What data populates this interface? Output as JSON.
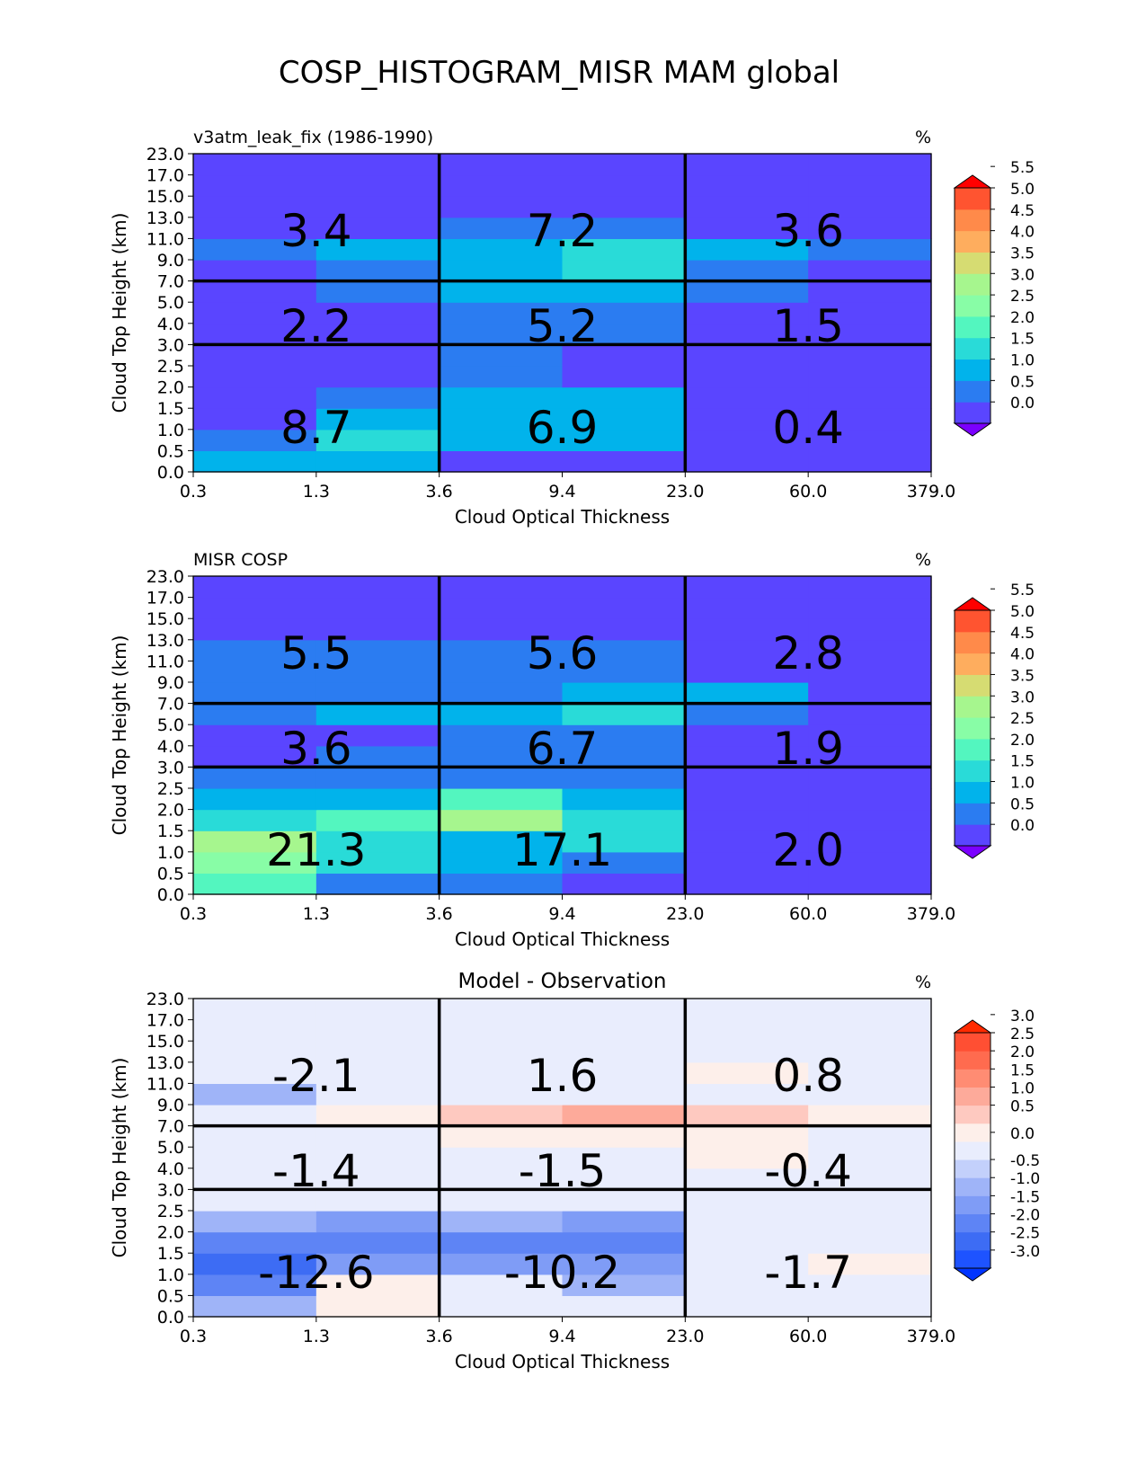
{
  "figure": {
    "title": "COSP_HISTOGRAM_MISR MAM global"
  },
  "chart_data": [
    {
      "type": "heatmap",
      "panel_title_left": "v3atm_leak_fix (1986-1990)",
      "panel_title_center": "",
      "units": "%",
      "xlabel": "Cloud Optical Thickness",
      "ylabel": "Cloud Top Height (km)",
      "x_ticks": [
        "0.3",
        "1.3",
        "3.6",
        "9.4",
        "23.0",
        "60.0",
        "379.0"
      ],
      "y_ticks": [
        "0.0",
        "0.5",
        "1.0",
        "1.5",
        "2.0",
        "2.5",
        "3.0",
        "4.0",
        "5.0",
        "7.0",
        "9.0",
        "11.0",
        "13.0",
        "15.0",
        "17.0",
        "23.0"
      ],
      "colorbar_ticks": [
        "0.0",
        "0.5",
        "1.0",
        "1.5",
        "2.0",
        "2.5",
        "3.0",
        "3.5",
        "4.0",
        "4.5",
        "5.0",
        "5.5"
      ],
      "colorbar_levels": [
        0,
        0.5,
        1.0,
        1.5,
        2.0,
        2.5,
        3.0,
        3.5,
        4.0,
        4.5,
        5.0,
        5.5
      ],
      "colorbar_colors": [
        "#7b00ff",
        "#5a45ff",
        "#2b7cf1",
        "#01b3eb",
        "#29dbd8",
        "#53f6bf",
        "#88fda6",
        "#a6f68e",
        "#d6dc72",
        "#fead5e",
        "#ff8a4a",
        "#ff5430",
        "#ff0000"
      ],
      "cells_row_order": "bottom-to-top (height 0.0-0.5 first), columns left-to-right (tau 0.3-1.3 first)",
      "cells": [
        [
          1.2,
          1.2,
          0.2,
          0.2,
          0.1,
          0.1
        ],
        [
          0.6,
          1.6,
          1.3,
          1.2,
          0.1,
          0.1
        ],
        [
          0.2,
          1.2,
          1.3,
          1.1,
          0.1,
          0.1
        ],
        [
          0.2,
          0.6,
          1.2,
          1.1,
          0.1,
          0.1
        ],
        [
          0.1,
          0.2,
          0.6,
          0.2,
          0.1,
          0.1
        ],
        [
          0.1,
          0.2,
          0.6,
          0.2,
          0.1,
          0.1
        ],
        [
          0.1,
          0.2,
          0.6,
          0.6,
          0.1,
          0.1
        ],
        [
          0.1,
          0.2,
          0.6,
          0.6,
          0.1,
          0.1
        ],
        [
          0.1,
          0.6,
          1.1,
          1.1,
          0.6,
          0.2
        ],
        [
          0.2,
          0.6,
          1.2,
          1.6,
          0.6,
          0.2
        ],
        [
          0.6,
          1.2,
          1.2,
          1.6,
          1.1,
          0.6
        ],
        [
          0.1,
          0.2,
          0.6,
          0.6,
          0.1,
          0.1
        ],
        [
          0.1,
          0.2,
          0.2,
          0.2,
          0.1,
          0.1
        ],
        [
          0.1,
          0.2,
          0.2,
          0.2,
          0.1,
          0.1
        ],
        [
          0.1,
          0.2,
          0.2,
          0.2,
          0.1,
          0.1
        ]
      ],
      "region_labels": [
        "8.7",
        "6.9",
        "0.4",
        "2.2",
        "5.2",
        "1.5",
        "3.4",
        "7.2",
        "3.6"
      ]
    },
    {
      "type": "heatmap",
      "panel_title_left": "MISR COSP",
      "panel_title_center": "",
      "units": "%",
      "xlabel": "Cloud Optical Thickness",
      "ylabel": "Cloud Top Height (km)",
      "x_ticks": [
        "0.3",
        "1.3",
        "3.6",
        "9.4",
        "23.0",
        "60.0",
        "379.0"
      ],
      "y_ticks": [
        "0.0",
        "0.5",
        "1.0",
        "1.5",
        "2.0",
        "2.5",
        "3.0",
        "4.0",
        "5.0",
        "7.0",
        "9.0",
        "11.0",
        "13.0",
        "15.0",
        "17.0",
        "23.0"
      ],
      "colorbar_ticks": [
        "0.0",
        "0.5",
        "1.0",
        "1.5",
        "2.0",
        "2.5",
        "3.0",
        "3.5",
        "4.0",
        "4.5",
        "5.0",
        "5.5"
      ],
      "colorbar_levels": [
        0,
        0.5,
        1.0,
        1.5,
        2.0,
        2.5,
        3.0,
        3.5,
        4.0,
        4.5,
        5.0,
        5.5
      ],
      "colorbar_colors": [
        "#7b00ff",
        "#5a45ff",
        "#2b7cf1",
        "#01b3eb",
        "#29dbd8",
        "#53f6bf",
        "#88fda6",
        "#a6f68e",
        "#d6dc72",
        "#fead5e",
        "#ff8a4a",
        "#ff5430",
        "#ff0000"
      ],
      "cells_row_order": "bottom-to-top (height 0.0-0.5 first), columns left-to-right (tau 0.3-1.3 first)",
      "cells": [
        [
          2.3,
          0.6,
          0.6,
          0.2,
          0.1,
          0.1
        ],
        [
          2.8,
          1.8,
          1.2,
          0.6,
          0.1,
          0.1
        ],
        [
          3.3,
          1.8,
          1.1,
          1.6,
          0.1,
          0.1
        ],
        [
          1.6,
          2.3,
          3.3,
          1.8,
          0.1,
          0.1
        ],
        [
          1.2,
          1.2,
          2.3,
          1.2,
          0.1,
          0.1
        ],
        [
          0.6,
          0.6,
          0.6,
          0.6,
          0.1,
          0.1
        ],
        [
          0.1,
          0.6,
          0.6,
          0.6,
          0.1,
          0.1
        ],
        [
          0.1,
          0.2,
          0.6,
          0.6,
          0.1,
          0.1
        ],
        [
          0.6,
          1.1,
          1.1,
          1.6,
          0.6,
          0.2
        ],
        [
          0.6,
          0.6,
          0.6,
          1.1,
          1.1,
          0.2
        ],
        [
          0.6,
          0.6,
          0.6,
          0.6,
          0.2,
          0.1
        ],
        [
          0.6,
          0.6,
          0.6,
          0.6,
          0.2,
          0.1
        ],
        [
          0.1,
          0.2,
          0.2,
          0.2,
          0.1,
          0.1
        ],
        [
          0.1,
          0.2,
          0.2,
          0.2,
          0.1,
          0.1
        ],
        [
          0.1,
          0.2,
          0.2,
          0.2,
          0.1,
          0.1
        ]
      ],
      "region_labels": [
        "21.3",
        "17.1",
        "2.0",
        "3.6",
        "6.7",
        "1.9",
        "5.5",
        "5.6",
        "2.8"
      ]
    },
    {
      "type": "heatmap",
      "panel_title_left": "",
      "panel_title_center": "Model - Observation",
      "units": "%",
      "xlabel": "Cloud Optical Thickness",
      "ylabel": "Cloud Top Height (km)",
      "x_ticks": [
        "0.3",
        "1.3",
        "3.6",
        "9.4",
        "23.0",
        "60.0",
        "379.0"
      ],
      "y_ticks": [
        "0.0",
        "0.5",
        "1.0",
        "1.5",
        "2.0",
        "2.5",
        "3.0",
        "4.0",
        "5.0",
        "7.0",
        "9.0",
        "11.0",
        "13.0",
        "15.0",
        "17.0",
        "23.0"
      ],
      "colorbar_ticks": [
        "-3.0",
        "-2.5",
        "-2.0",
        "-1.5",
        "-1.0",
        "-0.5",
        "0.0",
        "0.5",
        "1.0",
        "1.5",
        "2.0",
        "2.5",
        "3.0"
      ],
      "colorbar_levels": [
        -3.0,
        -2.5,
        -2.0,
        -1.5,
        -1.0,
        -0.5,
        -0.25,
        0.25,
        0.5,
        1.0,
        1.5,
        2.0,
        2.5,
        3.0
      ],
      "colorbar_colors": [
        "#0034ff",
        "#1e53ff",
        "#3d6cf4",
        "#5e84f5",
        "#7f9cf6",
        "#9fb4f8",
        "#c3d0fb",
        "#e9edfd",
        "#fdefea",
        "#fec9c0",
        "#fdaa9a",
        "#ff8c73",
        "#ff6b4f",
        "#ff4f33",
        "#ff2a00"
      ],
      "cells_row_order": "bottom-to-top (height 0.0-0.5 first), columns left-to-right (tau 0.3-1.3 first)",
      "cells": [
        [
          -0.7,
          0.3,
          0.0,
          0.0,
          0.0,
          0.0
        ],
        [
          -1.6,
          0.3,
          0.0,
          -0.7,
          0.0,
          0.0
        ],
        [
          -2.3,
          -1.3,
          -1.2,
          -1.2,
          0.0,
          0.3
        ],
        [
          -1.6,
          -1.8,
          -1.8,
          -1.7,
          0.0,
          0.0
        ],
        [
          -0.7,
          -1.3,
          -0.7,
          -1.2,
          0.0,
          0.0
        ],
        [
          0.0,
          0.0,
          0.0,
          0.0,
          0.0,
          0.0
        ],
        [
          0.0,
          0.0,
          0.0,
          0.0,
          0.0,
          0.0
        ],
        [
          0.0,
          0.0,
          0.0,
          0.0,
          0.3,
          0.0
        ],
        [
          0.0,
          0.0,
          0.3,
          0.3,
          0.3,
          0.0
        ],
        [
          0.0,
          0.3,
          0.7,
          1.2,
          0.7,
          0.3
        ],
        [
          -0.7,
          0.0,
          0.0,
          0.0,
          0.0,
          0.0
        ],
        [
          0.0,
          0.0,
          0.0,
          0.0,
          0.3,
          0.0
        ],
        [
          0.0,
          0.0,
          0.0,
          0.0,
          0.0,
          0.0
        ],
        [
          0.0,
          0.0,
          0.0,
          0.0,
          0.0,
          0.0
        ],
        [
          0.0,
          0.0,
          0.0,
          0.0,
          0.0,
          0.0
        ]
      ],
      "region_labels": [
        "-12.6",
        "-10.2",
        "-1.7",
        "-1.4",
        "-1.5",
        "-0.4",
        "-2.1",
        "1.6",
        "0.8"
      ]
    }
  ]
}
